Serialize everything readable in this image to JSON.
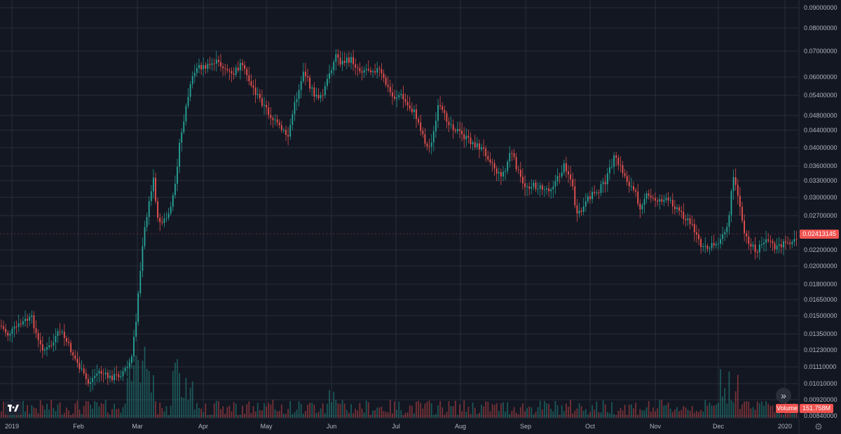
{
  "chart_data": {
    "type": "candlestick",
    "x_labels": [
      "2019",
      "Feb",
      "Mar",
      "Apr",
      "May",
      "Jun",
      "Jul",
      "Aug",
      "Sep",
      "Oct",
      "Nov",
      "Dec",
      "2020"
    ],
    "y_ticks": [
      "0.09000000",
      "0.08000000",
      "0.07000000",
      "0.06000000",
      "0.05400000",
      "0.04800000",
      "0.04400000",
      "0.04000000",
      "0.03600000",
      "0.03300000",
      "0.03000000",
      "0.02700000",
      "0.02200000",
      "0.02000000",
      "0.01800000",
      "0.01650000",
      "0.01500000",
      "0.01350000",
      "0.01230000",
      "0.01110000",
      "0.01010000",
      "0.00920000",
      "0.00840000"
    ],
    "current_price": "0.02413145",
    "volume_label": "Volume",
    "volume_value": "151.758M",
    "up_color": "#26a69a",
    "down_color": "#ef5350",
    "grid_color": "#2a2e39",
    "background": "#131722"
  },
  "ui": {
    "logo_icon": "tradingview-logo-icon",
    "scroll_icon": "chevron-right-double-icon",
    "settings_icon": "gear-icon"
  }
}
